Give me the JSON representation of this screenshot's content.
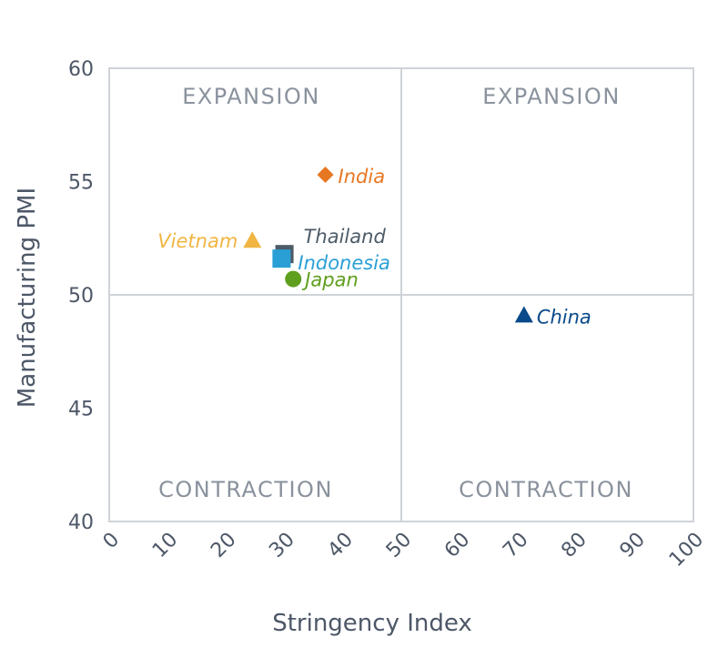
{
  "chart_data": {
    "type": "scatter",
    "xlabel": "Stringency Index",
    "ylabel": "Manufacturing PMI",
    "xlim": [
      0,
      100
    ],
    "ylim": [
      40,
      60
    ],
    "x_ticks": [
      "0",
      "10",
      "20",
      "30",
      "40",
      "50",
      "60",
      "70",
      "80",
      "90",
      "100"
    ],
    "y_ticks": [
      "40",
      "45",
      "50",
      "55",
      "60"
    ],
    "quadrants": {
      "top_left": "EXPANSION",
      "top_right": "EXPANSION",
      "bottom_left": "CONTRACTION",
      "bottom_right": "CONTRACTION"
    },
    "reference_lines": {
      "x": 50,
      "y": 50
    },
    "grid": false,
    "points": [
      {
        "name": "India",
        "x": 37,
        "y": 55.3,
        "marker": "diamond",
        "color": "#e87722"
      },
      {
        "name": "Vietnam",
        "x": 24.5,
        "y": 52.4,
        "marker": "triangle",
        "color": "#f0b542"
      },
      {
        "name": "Thailand",
        "x": 30,
        "y": 51.8,
        "marker": "square",
        "color": "#4e5b68"
      },
      {
        "name": "Indonesia",
        "x": 29.5,
        "y": 51.6,
        "marker": "square",
        "color": "#2a9fd6"
      },
      {
        "name": "Japan",
        "x": 31.5,
        "y": 50.7,
        "marker": "circle",
        "color": "#5f9f1f"
      },
      {
        "name": "China",
        "x": 71,
        "y": 49.1,
        "marker": "triangle",
        "color": "#0a4a8a"
      }
    ]
  }
}
